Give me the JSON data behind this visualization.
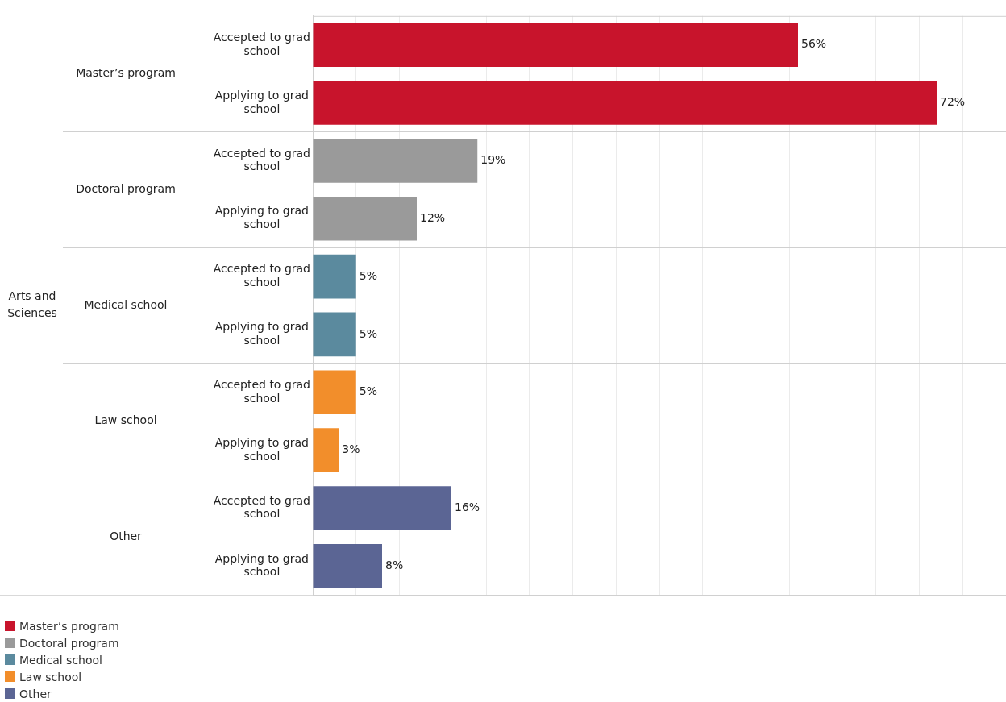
{
  "chart_data": {
    "type": "bar",
    "orientation": "horizontal",
    "annotations": [
      "Arts and Sciences"
    ],
    "categories": [
      "Accepted to grad school",
      "Applying to grad school",
      "Accepted to grad school",
      "Applying to grad school",
      "Accepted to grad school",
      "Applying to grad school",
      "Accepted to grad school",
      "Applying to grad school",
      "Accepted to grad school",
      "Applying to grad school"
    ],
    "series": [
      {
        "name": "Master’s program",
        "color": "#c8142c",
        "values": [
          56,
          72,
          null,
          null,
          null,
          null,
          null,
          null,
          null,
          null
        ],
        "value_labels": [
          "56%",
          "72%",
          null,
          null,
          null,
          null,
          null,
          null,
          null,
          null
        ]
      },
      {
        "name": "Doctoral program",
        "color": "#9a9a9a",
        "values": [
          null,
          null,
          19,
          12,
          null,
          null,
          null,
          null,
          null,
          null
        ],
        "value_labels": [
          null,
          null,
          "19%",
          "12%",
          null,
          null,
          null,
          null,
          null,
          null
        ]
      },
      {
        "name": "Medical school",
        "color": "#5b8a9e",
        "values": [
          null,
          null,
          null,
          null,
          5,
          5,
          null,
          null,
          null,
          null
        ],
        "value_labels": [
          null,
          null,
          null,
          null,
          "5%",
          "5%",
          null,
          null,
          null,
          null
        ]
      },
      {
        "name": "Law school",
        "color": "#f28e2b",
        "values": [
          null,
          null,
          null,
          null,
          null,
          null,
          5,
          3,
          null,
          null
        ],
        "value_labels": [
          null,
          null,
          null,
          null,
          null,
          null,
          "5%",
          "3%",
          null,
          null
        ]
      },
      {
        "name": "Other",
        "color": "#5b6594",
        "values": [
          null,
          null,
          null,
          null,
          null,
          null,
          null,
          null,
          16,
          8
        ],
        "value_labels": [
          null,
          null,
          null,
          null,
          null,
          null,
          null,
          null,
          "16%",
          "8%"
        ]
      }
    ],
    "xlim": [
      0,
      80
    ],
    "xticks": [
      {
        "value": 0,
        "label": null
      },
      {
        "value": 5,
        "label": null
      },
      {
        "value": 10,
        "label": null
      },
      {
        "value": 15,
        "label": null
      },
      {
        "value": 20,
        "label": null
      },
      {
        "value": 25,
        "label": null
      },
      {
        "value": 30,
        "label": null
      },
      {
        "value": 35,
        "label": null
      },
      {
        "value": 40,
        "label": null
      },
      {
        "value": 45,
        "label": null
      },
      {
        "value": 50,
        "label": null
      },
      {
        "value": 55,
        "label": null
      },
      {
        "value": 60,
        "label": null
      },
      {
        "value": 65,
        "label": null
      },
      {
        "value": 70,
        "label": null
      },
      {
        "value": 75,
        "label": null
      }
    ],
    "grid": "x",
    "tick_labels": "y",
    "legend": "bottom left"
  }
}
